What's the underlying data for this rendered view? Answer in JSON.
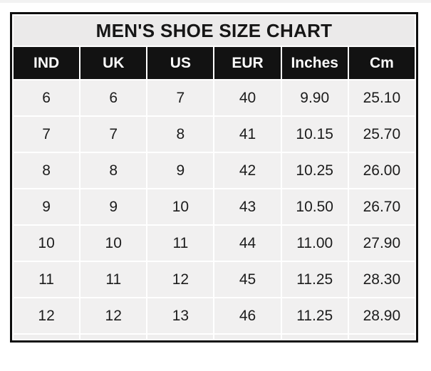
{
  "title": "MEN'S SHOE SIZE CHART",
  "colors": {
    "outer_border": "#0e0e0e",
    "title_background": "#ebeaea",
    "header_background": "#121212",
    "header_text": "#fbfbfb",
    "cell_background": "#f1f0f0",
    "cell_text": "#1c1c1c",
    "grid_gap": "#ffffff"
  },
  "chart_data": {
    "type": "table",
    "title": "MEN'S SHOE SIZE CHART",
    "columns": [
      "IND",
      "UK",
      "US",
      "EUR",
      "Inches",
      "Cm"
    ],
    "rows": [
      [
        "6",
        "6",
        "7",
        "40",
        "9.90",
        "25.10"
      ],
      [
        "7",
        "7",
        "8",
        "41",
        "10.15",
        "25.70"
      ],
      [
        "8",
        "8",
        "9",
        "42",
        "10.25",
        "26.00"
      ],
      [
        "9",
        "9",
        "10",
        "43",
        "10.50",
        "26.70"
      ],
      [
        "10",
        "10",
        "11",
        "44",
        "11.00",
        "27.90"
      ],
      [
        "11",
        "11",
        "12",
        "45",
        "11.25",
        "28.30"
      ],
      [
        "12",
        "12",
        "13",
        "46",
        "11.25",
        "28.90"
      ]
    ]
  }
}
